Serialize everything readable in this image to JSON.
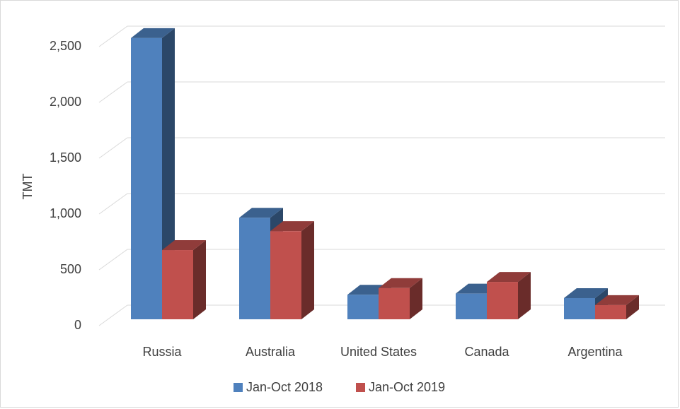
{
  "chart_data": {
    "type": "bar3d",
    "y_label": "TMT",
    "categories": [
      "Russia",
      "Australia",
      "United States",
      "Canada",
      "Argentina"
    ],
    "series": [
      {
        "name": "Jan-Oct 2018",
        "color": "#4f81bd",
        "values": [
          2520,
          910,
          220,
          230,
          190
        ]
      },
      {
        "name": "Jan-Oct 2019",
        "color": "#c0504d",
        "values": [
          620,
          790,
          280,
          335,
          127
        ]
      }
    ],
    "ylim": [
      0,
      2500
    ],
    "yticks": [
      0,
      500,
      {
        "value": 1000,
        "label": "1,000"
      },
      {
        "value": 1500,
        "label": "1,500"
      },
      {
        "value": 2000,
        "label": "2,000"
      },
      {
        "value": 2500,
        "label": "2,500"
      }
    ],
    "grid": true
  }
}
